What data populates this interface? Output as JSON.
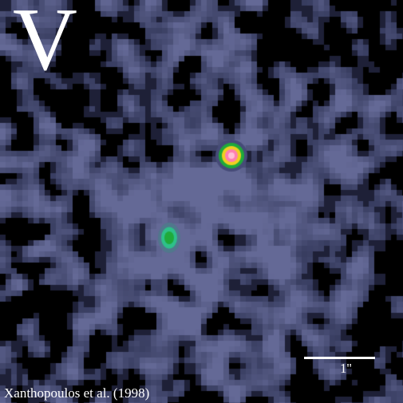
{
  "image": {
    "band_label": "V",
    "scale_bar_label": "1''",
    "credit": "Xanthopoulos et al. (1998)",
    "colors": {
      "background": "#000000",
      "diffuse_emission": "#5a5f8c",
      "bright_core_outer": "#1faa3a",
      "bright_core_mid": "#f0d020",
      "bright_core_center": "#ff7fb0",
      "annotation_text": "#ffffff"
    }
  }
}
